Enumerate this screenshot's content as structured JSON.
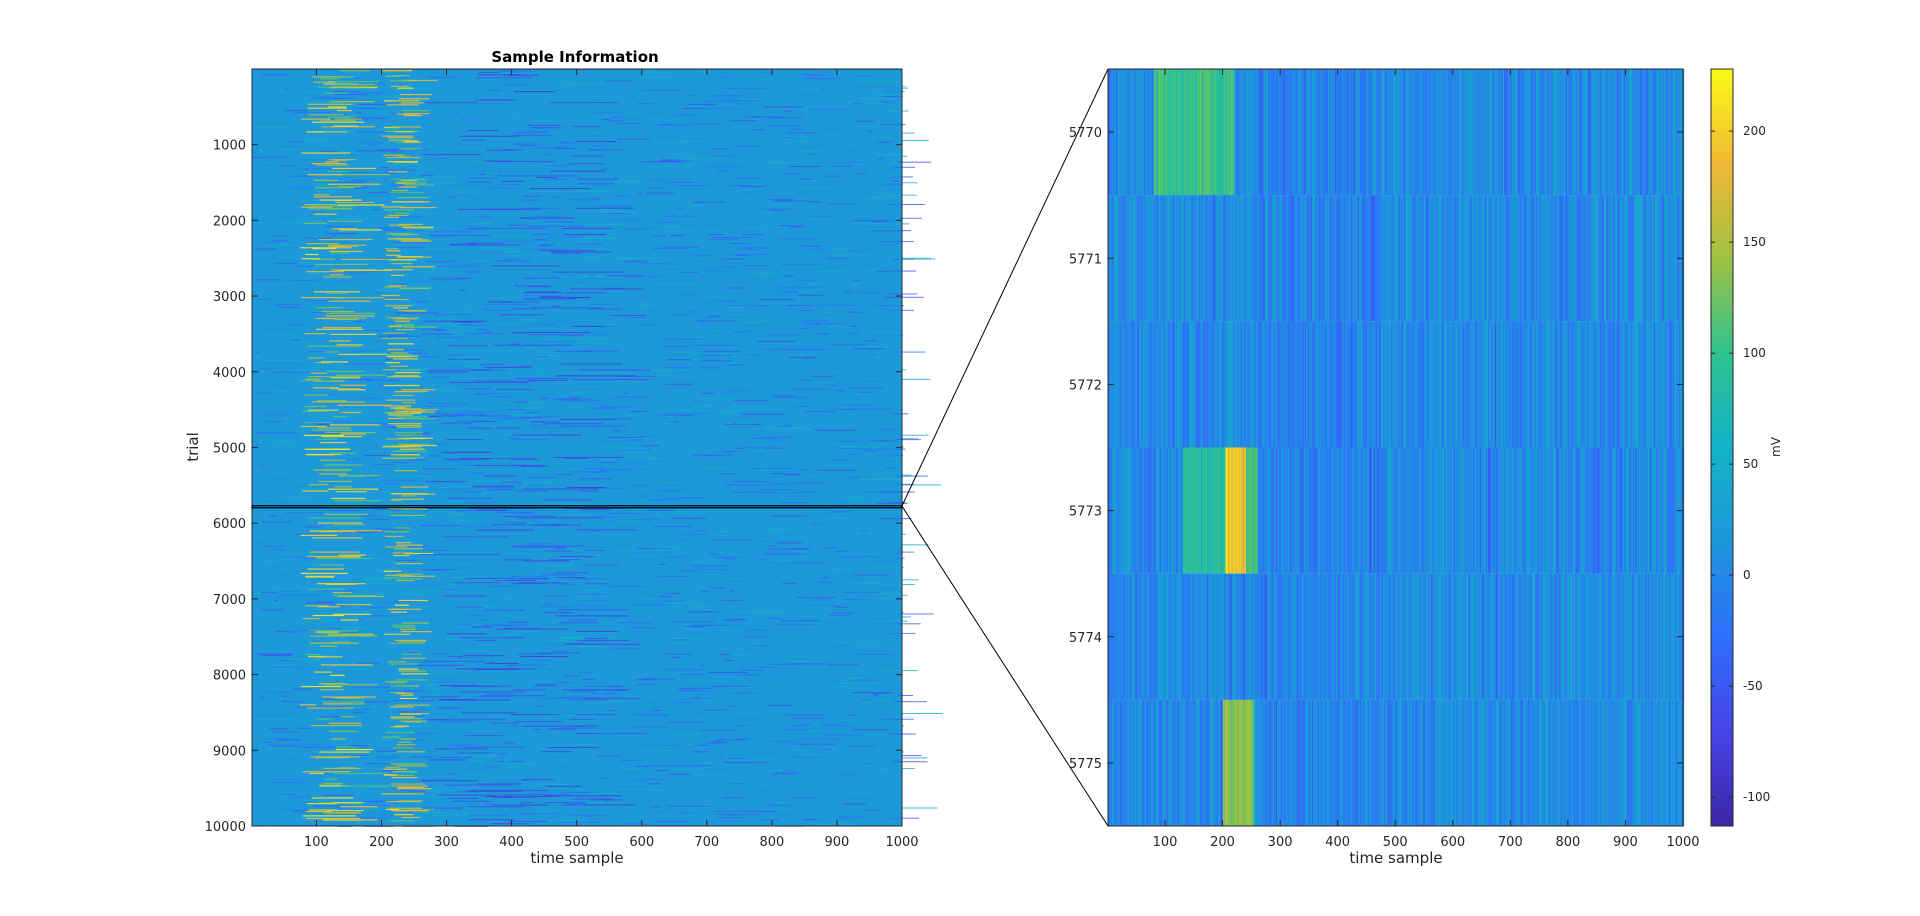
{
  "chart_data": [
    {
      "type": "heatmap",
      "title": "Sample Information",
      "xlabel": "time sample",
      "ylabel": "trial",
      "xlim": [
        1,
        1000
      ],
      "ylim": [
        1,
        10000
      ],
      "y_reversed": true,
      "x_ticks": [
        100,
        200,
        300,
        400,
        500,
        600,
        700,
        800,
        900,
        1000
      ],
      "x_tick_labels": [
        "100",
        "200",
        "300",
        "400",
        "500",
        "600",
        "700",
        "800",
        "900",
        "1000"
      ],
      "y_ticks": [
        1000,
        2000,
        3000,
        4000,
        5000,
        6000,
        7000,
        8000,
        9000,
        10000
      ],
      "y_tick_labels": [
        "1000",
        "2000",
        "3000",
        "4000",
        "5000",
        "6000",
        "7000",
        "8000",
        "9000",
        "10000"
      ],
      "highlight_trials": [
        5770,
        5775
      ],
      "active_time_ranges": [
        [
          75,
          180
        ],
        [
          200,
          260
        ]
      ],
      "colormap": "parula"
    },
    {
      "type": "heatmap",
      "title": "",
      "xlabel": "time sample",
      "ylabel": "",
      "xlim": [
        1,
        1000
      ],
      "ylim": [
        5769.5,
        5775.5
      ],
      "x_ticks": [
        100,
        200,
        300,
        400,
        500,
        600,
        700,
        800,
        900,
        1000
      ],
      "x_tick_labels": [
        "100",
        "200",
        "300",
        "400",
        "500",
        "600",
        "700",
        "800",
        "900",
        "1000"
      ],
      "y_ticks": [
        5770,
        5771,
        5772,
        5773,
        5774,
        5775
      ],
      "y_tick_labels": [
        "5770",
        "5771",
        "5772",
        "5773",
        "5774",
        "5775"
      ],
      "rows": [
        {
          "trial": 5770,
          "peaks": [
            {
              "from": 80,
              "to": 220,
              "value": 100
            }
          ]
        },
        {
          "trial": 5771,
          "peaks": []
        },
        {
          "trial": 5772,
          "peaks": []
        },
        {
          "trial": 5773,
          "peaks": [
            {
              "from": 130,
              "to": 205,
              "value": 90
            },
            {
              "from": 205,
              "to": 240,
              "value": 190
            },
            {
              "from": 240,
              "to": 260,
              "value": 110
            }
          ]
        },
        {
          "trial": 5774,
          "peaks": []
        },
        {
          "trial": 5775,
          "peaks": [
            {
              "from": 200,
              "to": 255,
              "value": 135
            }
          ]
        }
      ],
      "colorbar": {
        "label": "mV",
        "range": [
          -113,
          228
        ],
        "ticks": [
          -100,
          -50,
          0,
          50,
          100,
          150,
          200
        ],
        "tick_labels": [
          "-100",
          "-50",
          "0",
          "50",
          "100",
          "150",
          "200"
        ]
      },
      "colormap": "parula"
    }
  ]
}
